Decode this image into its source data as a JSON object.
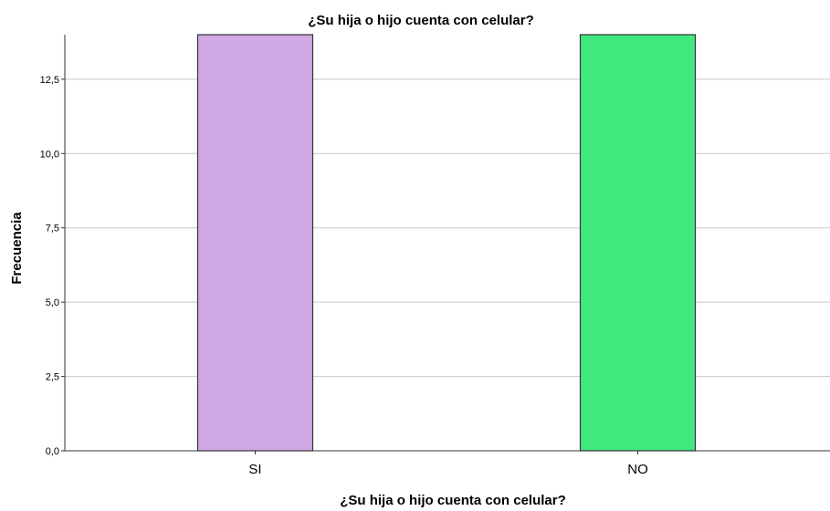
{
  "chart_data": {
    "type": "bar",
    "title": "¿Su hija o hijo  cuenta con celular?",
    "xlabel": "¿Su hija o hijo  cuenta con celular?",
    "ylabel": "Frecuencia",
    "categories": [
      "SI",
      "NO"
    ],
    "values": [
      14,
      14
    ],
    "colors": [
      "#D0A9E4",
      "#41E87E"
    ],
    "ylim": [
      0,
      14
    ],
    "yticks": [
      0,
      2.5,
      5,
      7.5,
      10,
      12.5
    ],
    "ytick_labels": [
      "0,0",
      "2,5",
      "5,0",
      "7,5",
      "10,0",
      "12,5"
    ],
    "grid": true,
    "legend": "none"
  }
}
